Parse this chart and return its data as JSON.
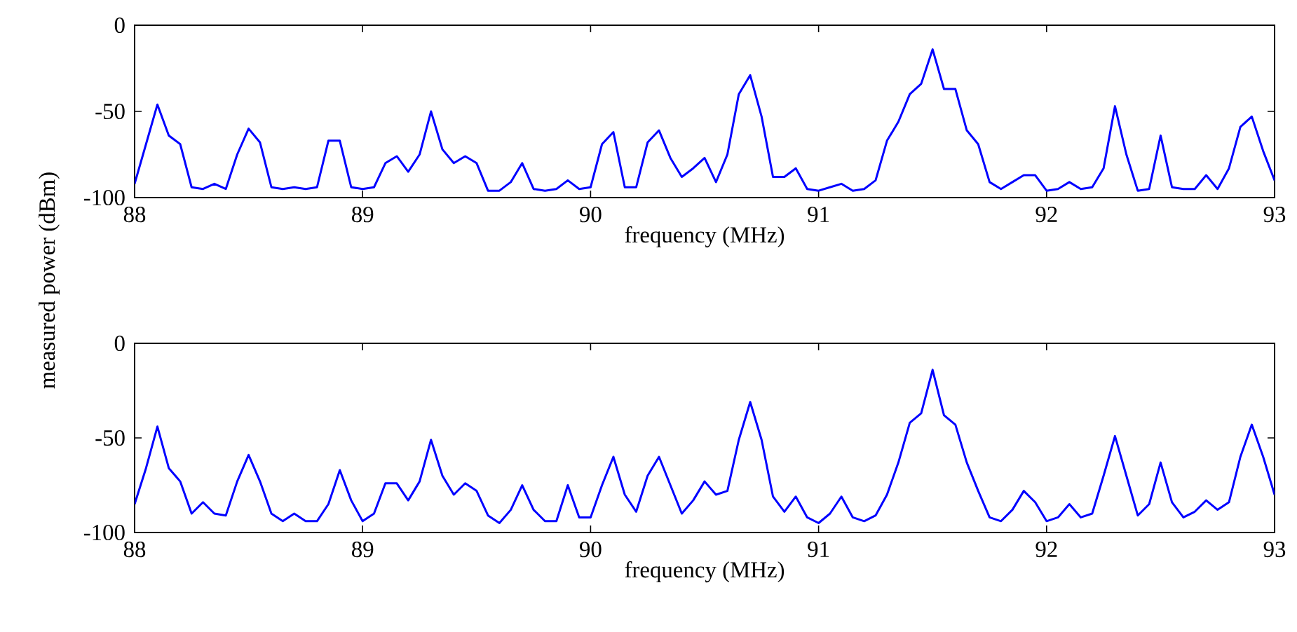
{
  "chart_data": [
    {
      "type": "line",
      "ylabel": "measured power (dBm)",
      "xlabel": "frequency (MHz)",
      "xlim": [
        88,
        93
      ],
      "ylim": [
        -100,
        0
      ],
      "xticks": [
        88,
        89,
        90,
        91,
        92,
        93
      ],
      "yticks": [
        -100,
        -50,
        0
      ],
      "grid": false,
      "marker": "none",
      "line_style": "solid",
      "x": [
        88.0,
        88.05,
        88.1,
        88.15,
        88.2,
        88.25,
        88.3,
        88.35,
        88.4,
        88.45,
        88.5,
        88.55,
        88.6,
        88.65,
        88.7,
        88.75,
        88.8,
        88.85,
        88.9,
        88.95,
        89.0,
        89.05,
        89.1,
        89.15,
        89.2,
        89.25,
        89.3,
        89.35,
        89.4,
        89.45,
        89.5,
        89.55,
        89.6,
        89.65,
        89.7,
        89.75,
        89.8,
        89.85,
        89.9,
        89.95,
        90.0,
        90.05,
        90.1,
        90.15,
        90.2,
        90.25,
        90.3,
        90.35,
        90.4,
        90.45,
        90.5,
        90.55,
        90.6,
        90.65,
        90.7,
        90.75,
        90.8,
        90.85,
        90.9,
        90.95,
        91.0,
        91.05,
        91.1,
        91.15,
        91.2,
        91.25,
        91.3,
        91.35,
        91.4,
        91.45,
        91.5,
        91.55,
        91.6,
        91.65,
        91.7,
        91.75,
        91.8,
        91.85,
        91.9,
        91.95,
        92.0,
        92.05,
        92.1,
        92.15,
        92.2,
        92.25,
        92.3,
        92.35,
        92.4,
        92.45,
        92.5,
        92.55,
        92.6,
        92.65,
        92.7,
        92.75,
        92.8,
        92.85,
        92.9,
        92.95,
        93.0
      ],
      "series": [
        {
          "color": "#0000ff",
          "values": [
            -92,
            -69,
            -46,
            -64,
            -69,
            -94,
            -95,
            -92,
            -95,
            -75,
            -60,
            -68,
            -94,
            -95,
            -94,
            -95,
            -94,
            -67,
            -67,
            -94,
            -95,
            -94,
            -80,
            -76,
            -85,
            -75,
            -50,
            -72,
            -80,
            -76,
            -80,
            -96,
            -96,
            -91,
            -80,
            -95,
            -96,
            -95,
            -90,
            -95,
            -94,
            -69,
            -62,
            -94,
            -94,
            -68,
            -61,
            -77,
            -88,
            -83,
            -77,
            -91,
            -75,
            -40,
            -29,
            -53,
            -88,
            -88,
            -83,
            -95,
            -96,
            -94,
            -92,
            -96,
            -95,
            -90,
            -67,
            -56,
            -40,
            -34,
            -14,
            -37,
            -37,
            -61,
            -69,
            -91,
            -95,
            -91,
            -87,
            -87,
            -96,
            -95,
            -91,
            -95,
            -94,
            -83,
            -47,
            -75,
            -96,
            -95,
            -64,
            -94,
            -95,
            -95,
            -87,
            -95,
            -83,
            -59,
            -53,
            -73,
            -90
          ]
        }
      ]
    },
    {
      "type": "line",
      "xlabel": "frequency (MHz)",
      "xlim": [
        88,
        93
      ],
      "ylim": [
        -100,
        0
      ],
      "xticks": [
        88,
        89,
        90,
        91,
        92,
        93
      ],
      "yticks": [
        -100,
        -50,
        0
      ],
      "grid": false,
      "marker": "none",
      "line_style": "solid",
      "x": [
        88.0,
        88.05,
        88.1,
        88.15,
        88.2,
        88.25,
        88.3,
        88.35,
        88.4,
        88.45,
        88.5,
        88.55,
        88.6,
        88.65,
        88.7,
        88.75,
        88.8,
        88.85,
        88.9,
        88.95,
        89.0,
        89.05,
        89.1,
        89.15,
        89.2,
        89.25,
        89.3,
        89.35,
        89.4,
        89.45,
        89.5,
        89.55,
        89.6,
        89.65,
        89.7,
        89.75,
        89.8,
        89.85,
        89.9,
        89.95,
        90.0,
        90.05,
        90.1,
        90.15,
        90.2,
        90.25,
        90.3,
        90.35,
        90.4,
        90.45,
        90.5,
        90.55,
        90.6,
        90.65,
        90.7,
        90.75,
        90.8,
        90.85,
        90.9,
        90.95,
        91.0,
        91.05,
        91.1,
        91.15,
        91.2,
        91.25,
        91.3,
        91.35,
        91.4,
        91.45,
        91.5,
        91.55,
        91.6,
        91.65,
        91.7,
        91.75,
        91.8,
        91.85,
        91.9,
        91.95,
        92.0,
        92.05,
        92.1,
        92.15,
        92.2,
        92.25,
        92.3,
        92.35,
        92.4,
        92.45,
        92.5,
        92.55,
        92.6,
        92.65,
        92.7,
        92.75,
        92.8,
        92.85,
        92.9,
        92.95,
        93.0
      ],
      "series": [
        {
          "color": "#0000ff",
          "values": [
            -85,
            -66,
            -44,
            -66,
            -73,
            -90,
            -84,
            -90,
            -91,
            -73,
            -59,
            -73,
            -90,
            -94,
            -90,
            -94,
            -94,
            -85,
            -67,
            -83,
            -94,
            -90,
            -74,
            -74,
            -83,
            -73,
            -51,
            -70,
            -80,
            -74,
            -78,
            -91,
            -95,
            -88,
            -75,
            -88,
            -94,
            -94,
            -75,
            -92,
            -92,
            -75,
            -60,
            -80,
            -89,
            -70,
            -60,
            -75,
            -90,
            -83,
            -73,
            -80,
            -78,
            -51,
            -31,
            -51,
            -81,
            -89,
            -81,
            -92,
            -95,
            -90,
            -81,
            -92,
            -94,
            -91,
            -80,
            -63,
            -42,
            -37,
            -14,
            -38,
            -43,
            -63,
            -78,
            -92,
            -94,
            -88,
            -78,
            -84,
            -94,
            -92,
            -85,
            -92,
            -90,
            -70,
            -49,
            -70,
            -91,
            -85,
            -63,
            -84,
            -92,
            -89,
            -83,
            -88,
            -84,
            -60,
            -43,
            -60,
            -80
          ]
        }
      ]
    }
  ]
}
